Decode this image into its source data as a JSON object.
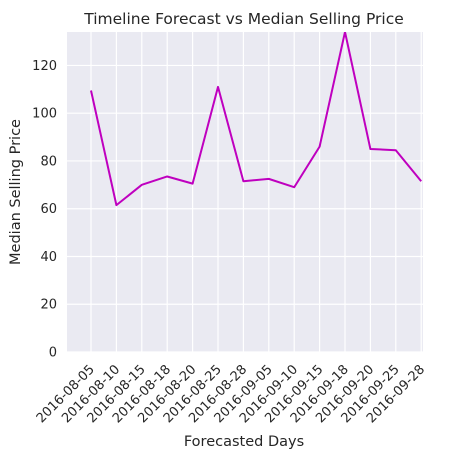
{
  "chart_data": {
    "type": "line",
    "title": "Timeline Forecast vs Median Selling Price",
    "xlabel": "Forecasted Days",
    "ylabel": "Median Selling Price",
    "categories": [
      "2016-08-05",
      "2016-08-10",
      "2016-08-15",
      "2016-08-18",
      "2016-08-20",
      "2016-08-25",
      "2016-08-28",
      "2016-09-05",
      "2016-09-10",
      "2016-09-15",
      "2016-09-18",
      "2016-09-20",
      "2016-09-25",
      "2016-09-28"
    ],
    "series": [
      {
        "values": [
          109.5,
          61.5,
          70,
          73.5,
          70.5,
          111,
          71.5,
          72.5,
          69,
          86,
          134,
          85,
          84.5,
          71.5
        ],
        "color": "#bf00bf"
      }
    ],
    "ylim": [
      0,
      134
    ],
    "yticks": [
      0,
      20,
      40,
      60,
      80,
      100,
      120
    ],
    "grid": true,
    "background": "#eaeaf2"
  }
}
